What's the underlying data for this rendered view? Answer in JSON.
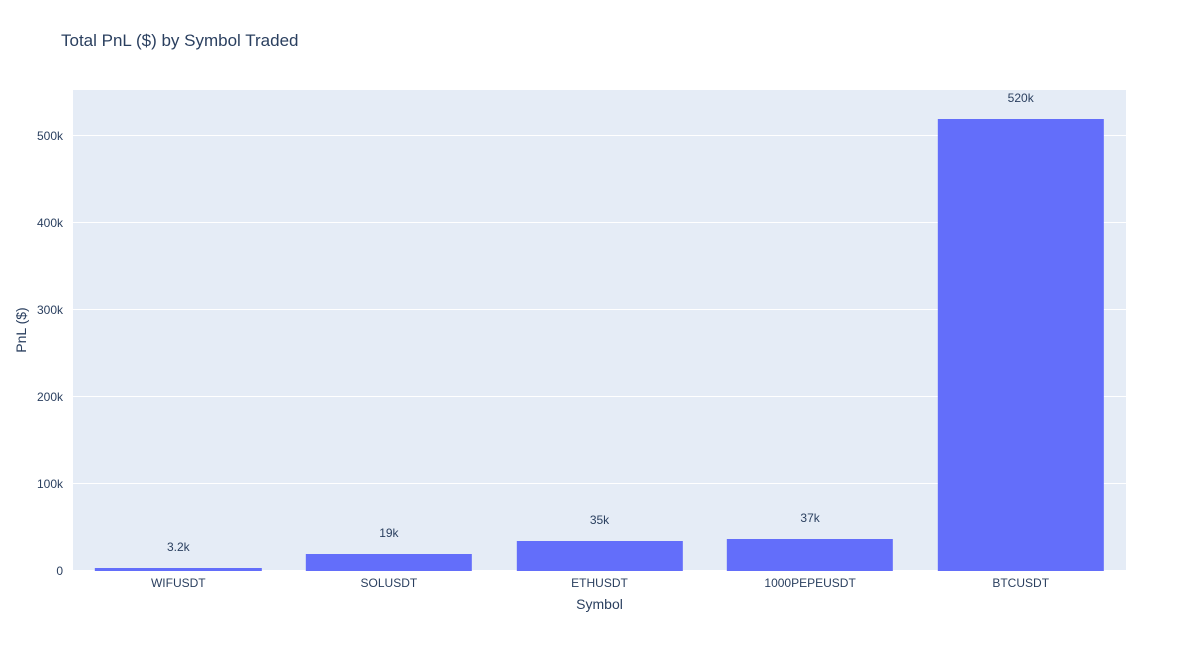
{
  "chart_data": {
    "type": "bar",
    "title": "Total PnL ($) by Symbol Traded",
    "xlabel": "Symbol",
    "ylabel": "PnL ($)",
    "categories": [
      "WIFUSDT",
      "SOLUSDT",
      "ETHUSDT",
      "1000PEPEUSDT",
      "BTCUSDT"
    ],
    "values": [
      3200,
      19000,
      35000,
      37000,
      520000
    ],
    "bar_labels": [
      "3.2k",
      "19k",
      "35k",
      "37k",
      "520k"
    ],
    "yticks": [
      {
        "value": 0,
        "label": "0"
      },
      {
        "value": 100000,
        "label": "100k"
      },
      {
        "value": 200000,
        "label": "200k"
      },
      {
        "value": 300000,
        "label": "300k"
      },
      {
        "value": 400000,
        "label": "400k"
      },
      {
        "value": 500000,
        "label": "500k"
      }
    ],
    "ylim": [
      0,
      553000
    ],
    "grid": true,
    "legend": "none",
    "colors": {
      "bar": "#636efa",
      "plot_background": "#e5ecf6",
      "gridline": "#ffffff",
      "text": "#2a3f5f",
      "page_background": "#ffffff"
    }
  }
}
